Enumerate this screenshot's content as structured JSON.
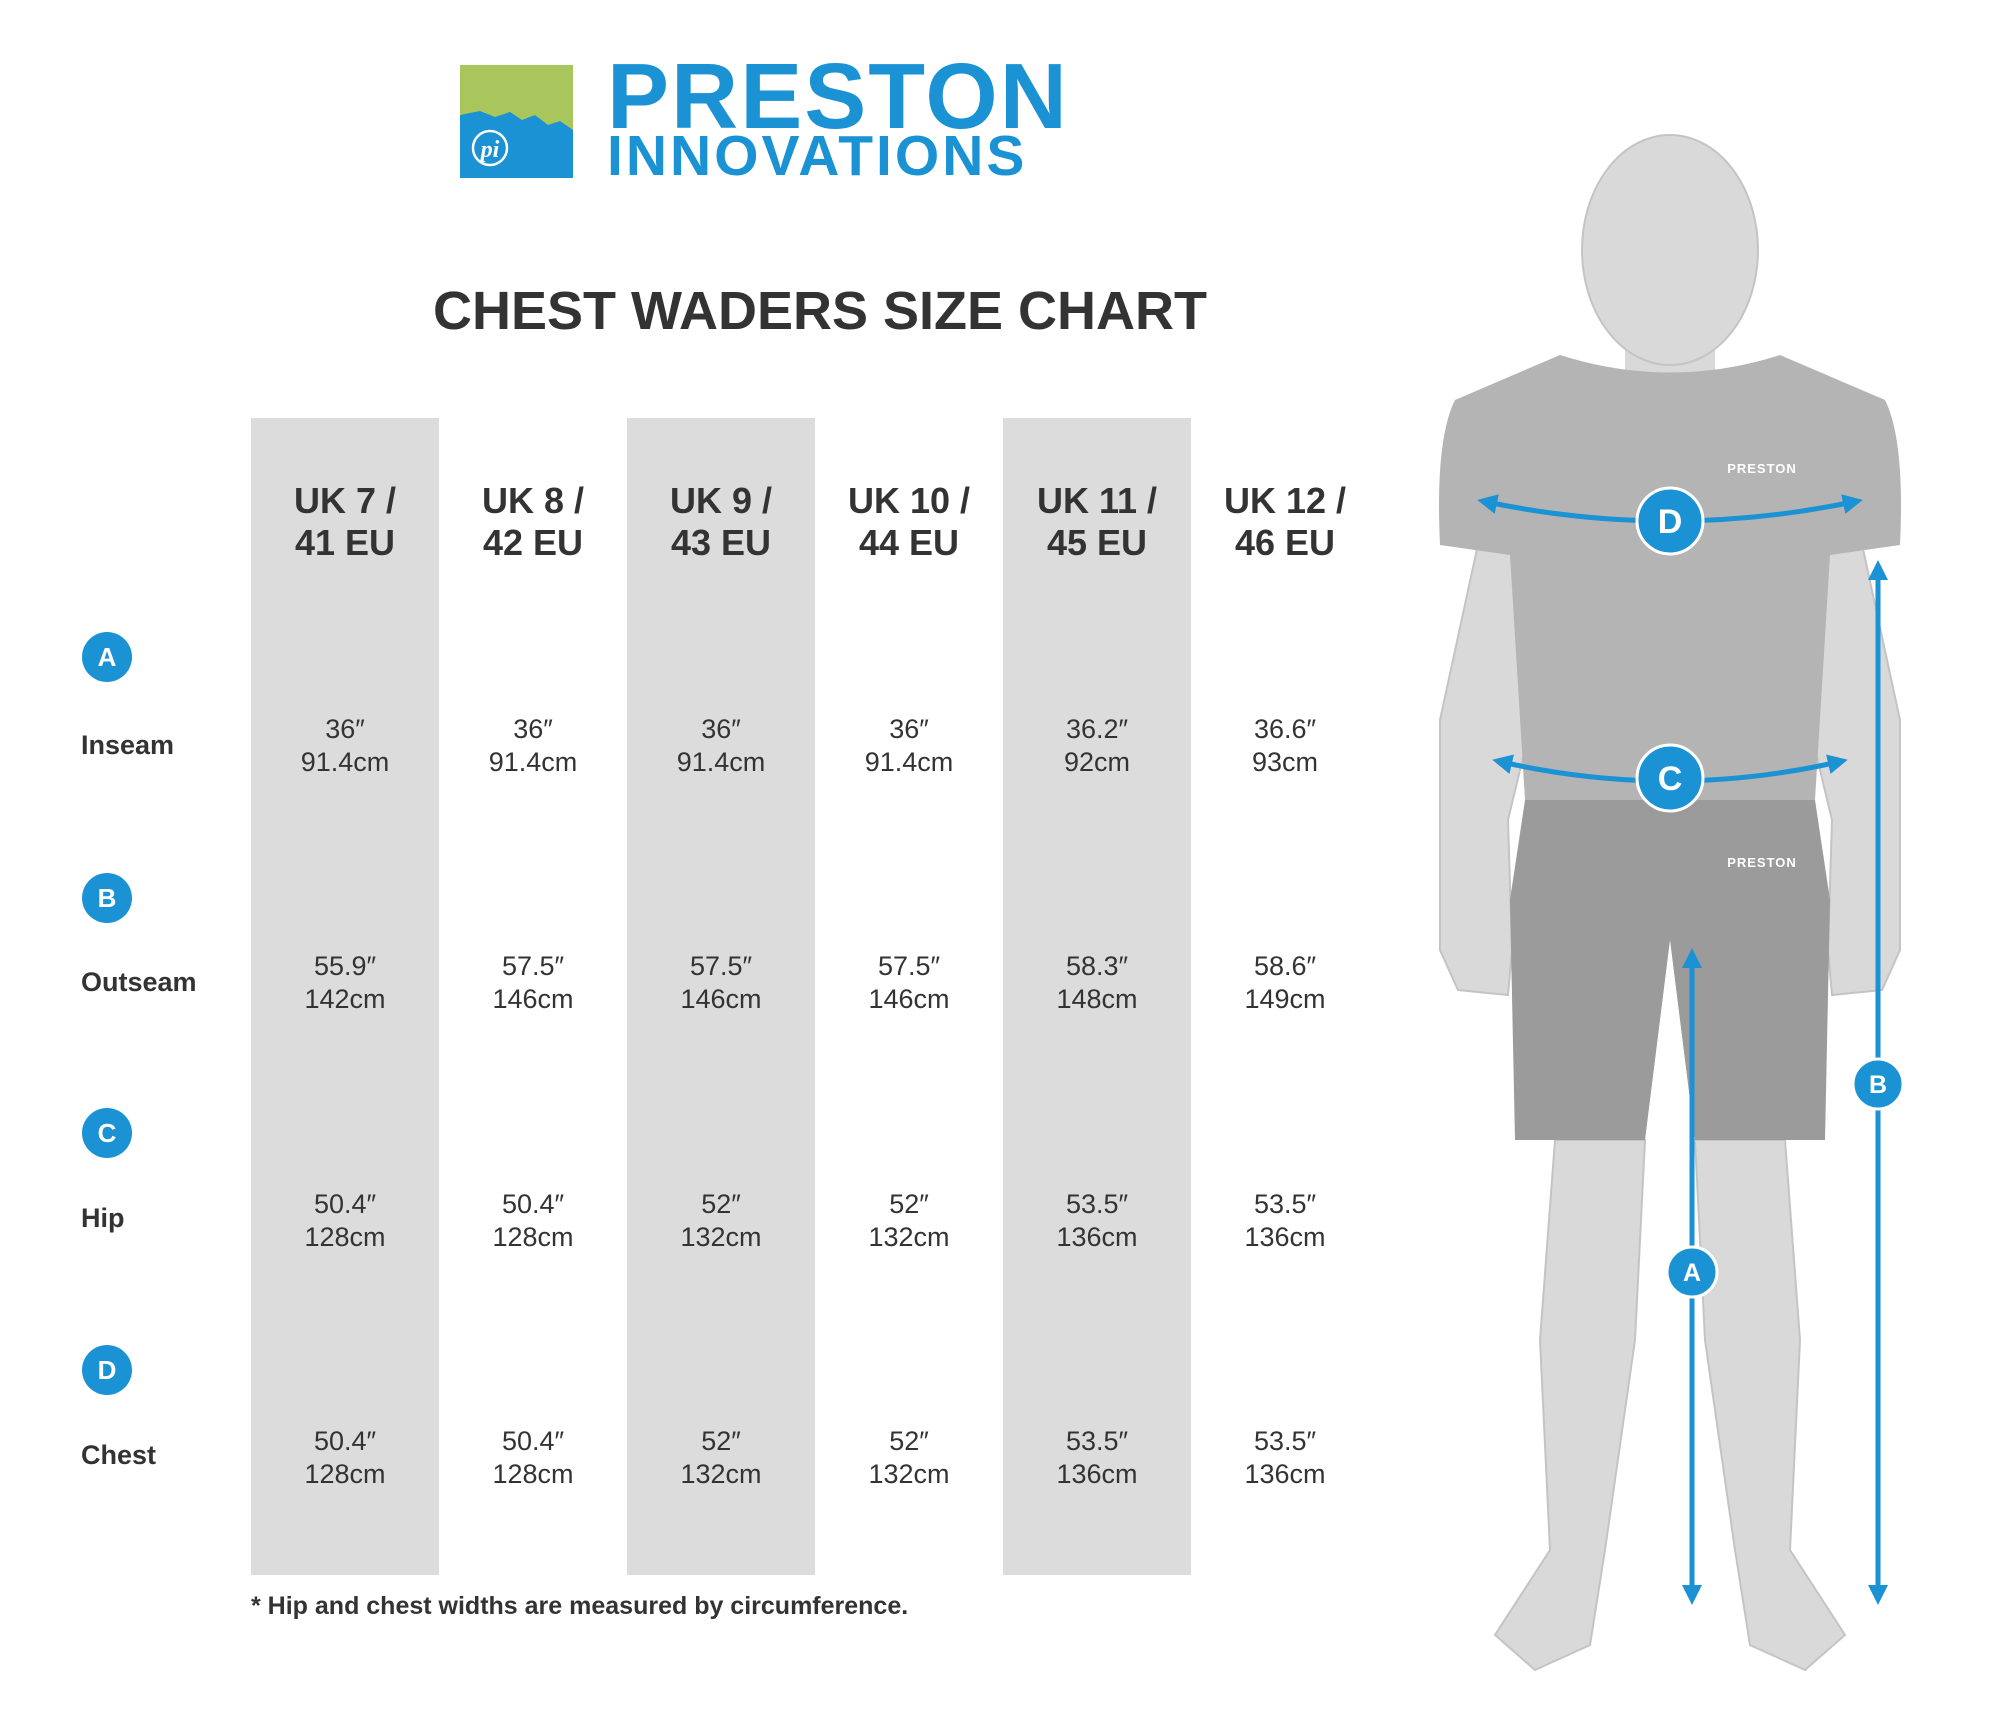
{
  "brand": {
    "line1": "PRESTON",
    "line2": "INNOVATIONS",
    "mark_text": "pi"
  },
  "title": "CHEST WADERS SIZE CHART",
  "colors": {
    "accent": "#1a92d4",
    "logo_green": "#a9c65c",
    "column_shade": "#dcdcdc",
    "text": "#333333"
  },
  "table": {
    "columns": [
      {
        "line1": "UK 7 /",
        "line2": "41 EU"
      },
      {
        "line1": "UK 8 /",
        "line2": "42 EU"
      },
      {
        "line1": "UK 9 /",
        "line2": "43 EU"
      },
      {
        "line1": "UK 10 /",
        "line2": "44 EU"
      },
      {
        "line1": "UK 11 /",
        "line2": "45 EU"
      },
      {
        "line1": "UK 12 /",
        "line2": "46 EU"
      }
    ],
    "rows": [
      {
        "badge": "A",
        "label": "Inseam",
        "values": [
          [
            "36″",
            "91.4cm"
          ],
          [
            "36″",
            "91.4cm"
          ],
          [
            "36″",
            "91.4cm"
          ],
          [
            "36″",
            "91.4cm"
          ],
          [
            "36.2″",
            "92cm"
          ],
          [
            "36.6″",
            "93cm"
          ]
        ]
      },
      {
        "badge": "B",
        "label": "Outseam",
        "values": [
          [
            "55.9″",
            "142cm"
          ],
          [
            "57.5″",
            "146cm"
          ],
          [
            "57.5″",
            "146cm"
          ],
          [
            "57.5″",
            "146cm"
          ],
          [
            "58.3″",
            "148cm"
          ],
          [
            "58.6″",
            "149cm"
          ]
        ]
      },
      {
        "badge": "C",
        "label": "Hip",
        "values": [
          [
            "50.4″",
            "128cm"
          ],
          [
            "50.4″",
            "128cm"
          ],
          [
            "52″",
            "132cm"
          ],
          [
            "52″",
            "132cm"
          ],
          [
            "53.5″",
            "136cm"
          ],
          [
            "53.5″",
            "136cm"
          ]
        ]
      },
      {
        "badge": "D",
        "label": "Chest",
        "values": [
          [
            "50.4″",
            "128cm"
          ],
          [
            "50.4″",
            "128cm"
          ],
          [
            "52″",
            "132cm"
          ],
          [
            "52″",
            "132cm"
          ],
          [
            "53.5″",
            "136cm"
          ],
          [
            "53.5″",
            "136cm"
          ]
        ]
      }
    ]
  },
  "footnote": "* Hip and chest widths are measured by circumference.",
  "figure": {
    "shirt_text": "PRESTON",
    "shorts_text": "PRESTON",
    "markers": {
      "chest": "D",
      "hip": "C",
      "inseam": "A",
      "outseam": "B"
    }
  }
}
